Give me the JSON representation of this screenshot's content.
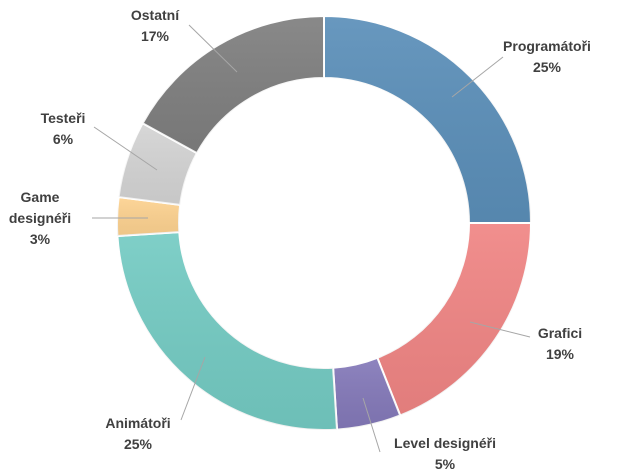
{
  "chart_data": {
    "type": "donut",
    "categories": [
      "Programátoři",
      "Grafici",
      "Level designéři",
      "Animátoři",
      "Game designéři",
      "Testeři",
      "Ostatní"
    ],
    "values": [
      25,
      19,
      5,
      25,
      3,
      6,
      17
    ],
    "value_labels": [
      "25%",
      "19%",
      "5%",
      "25%",
      "3%",
      "6%",
      "17%"
    ],
    "colors": [
      "#5b8fb9",
      "#f08584",
      "#8479b9",
      "#74cbc3",
      "#fdd290",
      "#d4d4d4",
      "#7f7f7f"
    ]
  }
}
